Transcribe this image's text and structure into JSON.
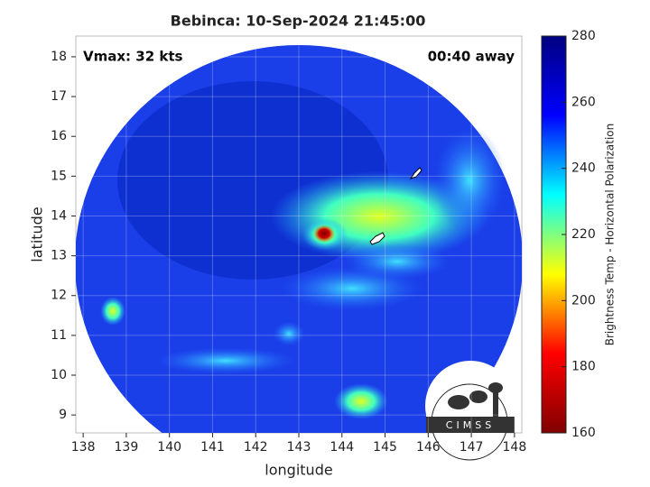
{
  "chart_data": {
    "type": "image",
    "title": "Bebinca: 10-Sep-2024 21:45:00",
    "annotations": [
      "Vmax: 32 kts",
      "00:40 away"
    ],
    "xlabel": "longitude",
    "ylabel": "latitude",
    "xlim": [
      137.83,
      148.17
    ],
    "xticks": [
      138,
      139,
      140,
      141,
      142,
      143,
      144,
      145,
      146,
      147,
      148
    ],
    "ylim": [
      8.55,
      18.52
    ],
    "yticks": [
      9,
      10,
      11,
      12,
      13,
      14,
      15,
      16,
      17,
      18
    ],
    "grid": true,
    "colorbar": {
      "label": "Brightness Temp - Horizontal Polarization",
      "lim": [
        160,
        280
      ],
      "ticks": [
        160,
        180,
        200,
        220,
        240,
        260,
        280
      ],
      "colormap": [
        "#800000",
        "#ff0000",
        "#ffff00",
        "#00ffff",
        "#0000ff",
        "#000080"
      ]
    },
    "logo": "CIMSS"
  }
}
